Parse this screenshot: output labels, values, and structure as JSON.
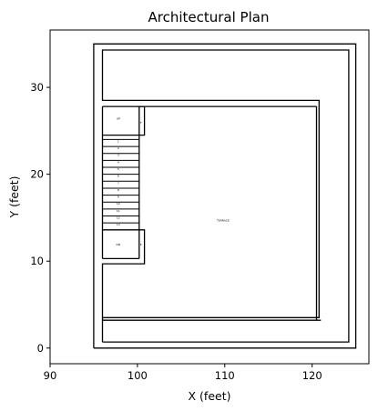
{
  "chart_data": {
    "type": "diagram",
    "title": "Architectural Plan",
    "xlabel": "X (feet)",
    "ylabel": "Y (feet)",
    "xlim": [
      90,
      126.5
    ],
    "ylim": [
      -1.8,
      36.6
    ],
    "xticks": [
      90,
      100,
      110,
      120
    ],
    "yticks": [
      0,
      10,
      20,
      30
    ],
    "grid": false,
    "line_color": "#000000",
    "walls": [
      {
        "name": "outer-boundary",
        "points": [
          [
            95,
            0
          ],
          [
            125,
            0
          ],
          [
            125,
            35
          ],
          [
            95,
            35
          ],
          [
            95,
            0
          ]
        ]
      },
      {
        "name": "inner-boundary",
        "points": [
          [
            96,
            0.7
          ],
          [
            124.2,
            0.7
          ],
          [
            124.2,
            34.3
          ],
          [
            96,
            34.3
          ],
          [
            96,
            28.5
          ],
          [
            120.8,
            28.5
          ],
          [
            120.8,
            3.5
          ],
          [
            96,
            3.5
          ],
          [
            96,
            0.7
          ]
        ]
      },
      {
        "name": "wall-top-inner",
        "points": [
          [
            100,
            27.8
          ],
          [
            120.5,
            27.8
          ]
        ]
      },
      {
        "name": "wall-bottom-inner",
        "points": [
          [
            96,
            3.2
          ],
          [
            121,
            3.2
          ]
        ]
      },
      {
        "name": "wall-right-inner",
        "points": [
          [
            120.5,
            27.8
          ],
          [
            120.5,
            3.2
          ]
        ]
      },
      {
        "name": "stair-left-rail",
        "points": [
          [
            96,
            27.8
          ],
          [
            96,
            10.3
          ]
        ]
      },
      {
        "name": "stair-center-rail",
        "points": [
          [
            100.2,
            27.8
          ],
          [
            100.2,
            10.3
          ]
        ]
      },
      {
        "name": "landing-top",
        "points": [
          [
            96,
            27.8
          ],
          [
            100.8,
            27.8
          ],
          [
            100.8,
            24.5
          ],
          [
            100.2,
            24.5
          ]
        ]
      },
      {
        "name": "landing-bottom",
        "points": [
          [
            96,
            10.3
          ],
          [
            100.2,
            10.3
          ]
        ]
      },
      {
        "name": "landing-bottom-box",
        "points": [
          [
            100.2,
            13.6
          ],
          [
            100.8,
            13.6
          ],
          [
            100.8,
            9.7
          ],
          [
            96,
            9.7
          ],
          [
            96,
            3.5
          ]
        ]
      },
      {
        "name": "upper-divider",
        "points": [
          [
            96,
            24.5
          ],
          [
            100.2,
            24.5
          ]
        ]
      },
      {
        "name": "lower-divider",
        "points": [
          [
            96,
            13.6
          ],
          [
            100.2,
            13.6
          ]
        ]
      }
    ],
    "stair_treads_y": [
      24.0,
      23.2,
      22.4,
      21.6,
      20.8,
      20.0,
      19.2,
      18.4,
      17.6,
      16.8,
      16.0,
      15.2,
      14.4
    ],
    "stair_x": [
      96,
      100.2
    ],
    "labels": [
      {
        "text": "UP",
        "x": 97.8,
        "y": 26.3
      },
      {
        "text": "TERRACE",
        "x": 109.8,
        "y": 14.6
      },
      {
        "text": "DN",
        "x": 97.8,
        "y": 11.8
      },
      {
        "text": "F",
        "x": 100.4,
        "y": 25.8
      },
      {
        "text": "E",
        "x": 100.4,
        "y": 11.8
      }
    ],
    "tread_labels": [
      "1",
      "2",
      "3",
      "4",
      "5",
      "6",
      "7",
      "8",
      "9",
      "10",
      "11",
      "12",
      "13"
    ]
  }
}
